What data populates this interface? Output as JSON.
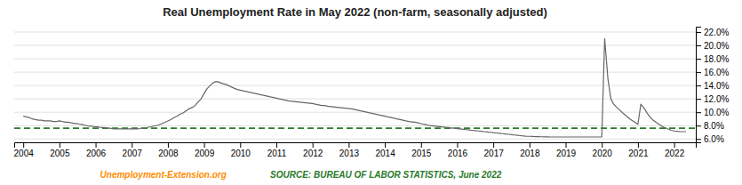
{
  "chart_data": {
    "type": "line",
    "title": "Real Unemployment Rate in May 2022 (non-farm, seasonally adjusted)",
    "x": [
      2004.0,
      2004.08,
      2004.17,
      2004.25,
      2004.33,
      2004.42,
      2004.5,
      2004.58,
      2004.67,
      2004.75,
      2004.83,
      2004.92,
      2005.0,
      2005.08,
      2005.17,
      2005.25,
      2005.33,
      2005.42,
      2005.5,
      2005.58,
      2005.67,
      2005.75,
      2005.83,
      2005.92,
      2006.0,
      2006.08,
      2006.17,
      2006.25,
      2006.33,
      2006.42,
      2006.5,
      2006.58,
      2006.67,
      2006.75,
      2006.83,
      2006.92,
      2007.0,
      2007.08,
      2007.17,
      2007.25,
      2007.33,
      2007.42,
      2007.5,
      2007.58,
      2007.67,
      2007.75,
      2007.83,
      2007.92,
      2008.0,
      2008.08,
      2008.17,
      2008.25,
      2008.33,
      2008.42,
      2008.5,
      2008.58,
      2008.67,
      2008.75,
      2008.83,
      2008.92,
      2009.0,
      2009.08,
      2009.17,
      2009.25,
      2009.33,
      2009.42,
      2009.5,
      2009.58,
      2009.67,
      2009.75,
      2009.83,
      2009.92,
      2010.0,
      2010.08,
      2010.17,
      2010.25,
      2010.33,
      2010.42,
      2010.5,
      2010.58,
      2010.67,
      2010.75,
      2010.83,
      2010.92,
      2011.0,
      2011.08,
      2011.17,
      2011.25,
      2011.33,
      2011.42,
      2011.5,
      2011.58,
      2011.67,
      2011.75,
      2011.83,
      2011.92,
      2012.0,
      2012.08,
      2012.17,
      2012.25,
      2012.33,
      2012.42,
      2012.5,
      2012.58,
      2012.67,
      2012.75,
      2012.83,
      2012.92,
      2013.0,
      2013.08,
      2013.17,
      2013.25,
      2013.33,
      2013.42,
      2013.5,
      2013.58,
      2013.67,
      2013.75,
      2013.83,
      2013.92,
      2014.0,
      2014.08,
      2014.17,
      2014.25,
      2014.33,
      2014.42,
      2014.5,
      2014.58,
      2014.67,
      2014.75,
      2014.83,
      2014.92,
      2015.0,
      2015.08,
      2015.17,
      2015.25,
      2015.33,
      2015.42,
      2015.5,
      2015.58,
      2015.67,
      2015.75,
      2015.83,
      2015.92,
      2016.0,
      2016.08,
      2016.17,
      2016.25,
      2016.33,
      2016.42,
      2016.5,
      2016.58,
      2016.67,
      2016.75,
      2016.83,
      2016.92,
      2017.0,
      2017.08,
      2017.17,
      2017.25,
      2017.33,
      2017.42,
      2017.5,
      2017.58,
      2017.67,
      2017.75,
      2017.83,
      2017.92,
      2018.0,
      2018.08,
      2018.17,
      2018.25,
      2018.33,
      2018.42,
      2018.5,
      2018.58,
      2018.67,
      2018.75,
      2018.83,
      2018.92,
      2019.0,
      2019.08,
      2019.17,
      2019.25,
      2019.33,
      2019.42,
      2019.5,
      2019.58,
      2019.67,
      2019.75,
      2019.83,
      2019.92,
      2020.0,
      2020.08,
      2020.17,
      2020.25,
      2020.33,
      2020.42,
      2020.5,
      2020.58,
      2020.67,
      2020.75,
      2020.83,
      2020.92,
      2021.0,
      2021.08,
      2021.17,
      2021.25,
      2021.33,
      2021.42,
      2021.5,
      2021.58,
      2021.67,
      2021.75,
      2021.83,
      2021.92,
      2022.0,
      2022.08,
      2022.17,
      2022.33
    ],
    "series": [
      {
        "color": "#666666",
        "values": [
          9.4,
          9.3,
          9.2,
          9.0,
          8.9,
          8.8,
          8.8,
          8.7,
          8.7,
          8.7,
          8.6,
          8.6,
          8.7,
          8.6,
          8.5,
          8.5,
          8.4,
          8.3,
          8.3,
          8.2,
          8.1,
          8.0,
          7.9,
          7.9,
          7.8,
          7.8,
          7.7,
          7.7,
          7.6,
          7.6,
          7.5,
          7.5,
          7.5,
          7.5,
          7.5,
          7.5,
          7.5,
          7.5,
          7.5,
          7.6,
          7.6,
          7.7,
          7.8,
          7.9,
          8.0,
          8.1,
          8.3,
          8.5,
          8.7,
          8.9,
          9.2,
          9.4,
          9.7,
          9.9,
          10.2,
          10.5,
          10.7,
          11.0,
          11.5,
          12.0,
          12.8,
          13.5,
          14.0,
          14.4,
          14.6,
          14.5,
          14.3,
          14.2,
          14.0,
          13.8,
          13.6,
          13.4,
          13.3,
          13.2,
          13.1,
          13.0,
          12.9,
          12.8,
          12.7,
          12.6,
          12.5,
          12.4,
          12.3,
          12.2,
          12.1,
          12.0,
          11.9,
          11.8,
          11.7,
          11.65,
          11.6,
          11.55,
          11.5,
          11.45,
          11.4,
          11.35,
          11.3,
          11.2,
          11.1,
          11.0,
          11.0,
          10.9,
          10.85,
          10.8,
          10.75,
          10.7,
          10.65,
          10.6,
          10.55,
          10.5,
          10.4,
          10.3,
          10.2,
          10.1,
          10.0,
          9.9,
          9.8,
          9.7,
          9.6,
          9.5,
          9.4,
          9.3,
          9.2,
          9.1,
          9.0,
          8.9,
          8.8,
          8.7,
          8.6,
          8.55,
          8.5,
          8.4,
          8.3,
          8.2,
          8.1,
          8.0,
          7.95,
          7.9,
          7.85,
          7.8,
          7.75,
          7.7,
          7.65,
          7.6,
          7.55,
          7.5,
          7.45,
          7.4,
          7.35,
          7.3,
          7.25,
          7.2,
          7.15,
          7.1,
          7.05,
          7.0,
          6.95,
          6.9,
          6.85,
          6.8,
          6.75,
          6.7,
          6.65,
          6.6,
          6.55,
          6.5,
          6.45,
          6.4,
          6.4,
          6.38,
          6.36,
          6.35,
          6.33,
          6.32,
          6.31,
          6.3,
          6.3,
          6.3,
          6.3,
          6.3,
          6.3,
          6.3,
          6.3,
          6.3,
          6.3,
          6.3,
          6.3,
          6.3,
          6.3,
          6.3,
          6.3,
          6.3,
          6.3,
          21.0,
          15.0,
          12.0,
          11.2,
          10.7,
          10.3,
          9.9,
          9.5,
          9.1,
          8.8,
          8.5,
          8.2,
          11.2,
          10.6,
          9.9,
          9.3,
          8.8,
          8.5,
          8.2,
          7.9,
          7.7,
          7.5,
          7.3,
          7.2,
          7.15,
          7.1,
          7.1
        ]
      }
    ],
    "hlines": [
      {
        "value": 7.6,
        "color": "#2a7a2a",
        "line_style": "dashed"
      }
    ],
    "xlim": [
      2003.75,
      2022.6
    ],
    "xticks": [
      2004,
      2005,
      2006,
      2007,
      2008,
      2009,
      2010,
      2011,
      2012,
      2013,
      2014,
      2015,
      2016,
      2017,
      2018,
      2019,
      2020,
      2021,
      2022
    ],
    "ylim": [
      5.5,
      22.8
    ],
    "yticks": [
      {
        "value": 6.0,
        "label": "6.0%"
      },
      {
        "value": 8.0,
        "label": "8.0%"
      },
      {
        "value": 10.0,
        "label": "10.0%"
      },
      {
        "value": 12.0,
        "label": "12.0%"
      },
      {
        "value": 14.0,
        "label": "14.0%"
      },
      {
        "value": 16.0,
        "label": "16.0%"
      },
      {
        "value": 18.0,
        "label": "18.0%"
      },
      {
        "value": 20.0,
        "label": "20.0%"
      },
      {
        "value": 22.0,
        "label": "22.0%"
      }
    ],
    "grid": true,
    "annotations": [
      {
        "text": "Unemployment-Extension.org",
        "color": "#ff8c00"
      },
      {
        "text": "SOURCE: BUREAU OF LABOR STATISTICS, June 2022",
        "color": "#2a7a2a"
      }
    ]
  }
}
